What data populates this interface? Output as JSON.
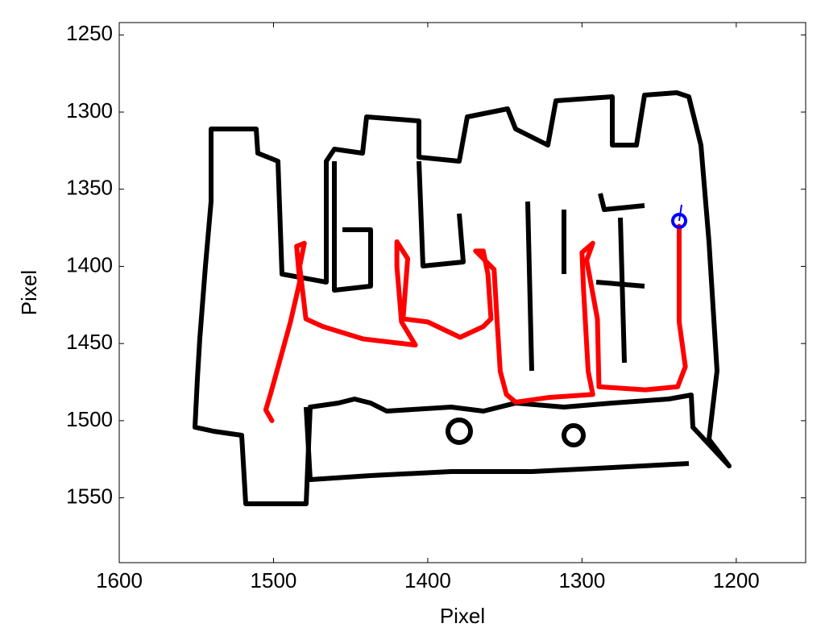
{
  "chart_data": {
    "type": "line",
    "x_label": "Pixel",
    "y_label": "Pixel",
    "xlim": [
      1600,
      1155
    ],
    "ylim": [
      1242,
      1592
    ],
    "y_reversed": true,
    "xticks": [
      1600,
      1500,
      1400,
      1300,
      1200
    ],
    "yticks": [
      1250,
      1300,
      1350,
      1400,
      1450,
      1500,
      1550
    ],
    "series": [
      {
        "color": "#ff0000",
        "x": [
          1501,
          1505,
          1502,
          1497,
          1489,
          1483,
          1485,
          1480,
          1483,
          1479,
          1468,
          1442,
          1408,
          1417,
          1420,
          1420,
          1413,
          1416,
          1400,
          1379,
          1364,
          1359,
          1361,
          1364,
          1369,
          1357,
          1355,
          1353,
          1349,
          1343,
          1322,
          1293,
          1296,
          1299,
          1300,
          1293,
          1297,
          1290,
          1289,
          1259,
          1238,
          1233,
          1237,
          1237
        ],
        "values": [
          1500,
          1493,
          1483,
          1465,
          1436,
          1410,
          1387,
          1385,
          1400,
          1434,
          1439,
          1447,
          1451,
          1436,
          1400,
          1384,
          1395,
          1434,
          1436,
          1446,
          1439,
          1434,
          1405,
          1390,
          1390,
          1402,
          1436,
          1468,
          1483,
          1488,
          1485,
          1483,
          1468,
          1415,
          1391,
          1385,
          1396,
          1434,
          1478,
          1480,
          1478,
          1465,
          1436,
          1374
        ]
      }
    ],
    "start_marker": {
      "x": 1237,
      "y": 1370.5,
      "color": "#0000ff"
    }
  }
}
